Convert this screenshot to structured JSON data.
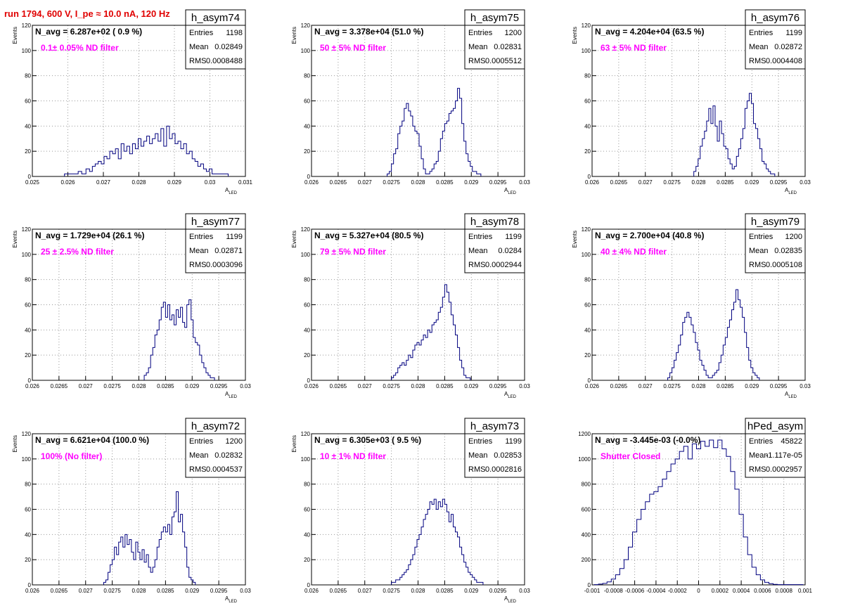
{
  "header": {
    "run_title": "run 1794,   600 V, I_pe ≈ 10.0 nA, 120 Hz"
  },
  "colors": {
    "histogram": "#00007f",
    "title": "#e00000",
    "annotation": "#ff00ff",
    "grid": "#999999"
  },
  "stats_labels": {
    "entries": "Entries",
    "mean": "Mean",
    "rms": "RMS"
  },
  "chart_data": [
    {
      "type": "histogram",
      "name": "h_asym74",
      "navg": "N_avg = 6.287e+02 ( 0.9 %)",
      "note": "0.1± 0.05% ND filter",
      "entries": "1198",
      "mean": "0.02849",
      "rms": "0.0008488",
      "xlabel": "A_LED",
      "ylabel": "Events",
      "xlim": [
        0.025,
        0.031
      ],
      "ylim": [
        0,
        120
      ],
      "xticks": [
        0.025,
        0.026,
        0.027,
        0.028,
        0.029,
        0.03,
        0.031
      ],
      "xtick_labels": [
        "0.025",
        "0.026",
        "0.027",
        "0.028",
        "0.029",
        "0.03",
        "0.031"
      ],
      "yticks": [
        0,
        20,
        40,
        60,
        80,
        100,
        120
      ],
      "x": [
        0.02597,
        0.0261,
        0.02625,
        0.02633,
        0.02645,
        0.02657,
        0.02665,
        0.02673,
        0.02681,
        0.0269,
        0.02698,
        0.02706,
        0.02714,
        0.02722,
        0.0273,
        0.02738,
        0.02746,
        0.02754,
        0.02762,
        0.0277,
        0.02778,
        0.02786,
        0.02794,
        0.02802,
        0.0281,
        0.02818,
        0.02826,
        0.02834,
        0.02842,
        0.0285,
        0.02858,
        0.02866,
        0.02874,
        0.02882,
        0.0289,
        0.02898,
        0.02906,
        0.02914,
        0.02922,
        0.0293,
        0.02938,
        0.02946,
        0.02954,
        0.02962,
        0.0297,
        0.02978,
        0.02986,
        0.02994,
        0.03002,
        0.0301,
        0.0302,
        0.03045
      ],
      "y": [
        2,
        2,
        2,
        4,
        2,
        6,
        4,
        8,
        10,
        12,
        10,
        16,
        14,
        20,
        18,
        22,
        14,
        26,
        20,
        24,
        18,
        26,
        22,
        30,
        24,
        28,
        32,
        26,
        30,
        34,
        28,
        38,
        24,
        40,
        30,
        34,
        26,
        28,
        22,
        26,
        18,
        20,
        14,
        12,
        8,
        10,
        6,
        4,
        6,
        2,
        2,
        2
      ]
    },
    {
      "type": "histogram",
      "name": "h_asym75",
      "navg": "N_avg = 3.378e+04 (51.0 %)",
      "note": "50 ± 5% ND filter",
      "entries": "1200",
      "mean": "0.02831",
      "rms": "0.0005512",
      "xlabel": "A_LED",
      "ylabel": "Events",
      "xlim": [
        0.026,
        0.03
      ],
      "ylim": [
        0,
        120
      ],
      "xticks": [
        0.026,
        0.0265,
        0.027,
        0.0275,
        0.028,
        0.0285,
        0.029,
        0.0295,
        0.03
      ],
      "xtick_labels": [
        "0.026",
        "0.0265",
        "0.027",
        "0.0275",
        "0.028",
        "0.0285",
        "0.029",
        "0.0295",
        "0.03"
      ],
      "yticks": [
        0,
        20,
        40,
        60,
        80,
        100,
        120
      ],
      "x": [
        0.02744,
        0.02748,
        0.02752,
        0.02756,
        0.0276,
        0.02764,
        0.02768,
        0.02772,
        0.02776,
        0.0278,
        0.02784,
        0.02788,
        0.02792,
        0.02796,
        0.028,
        0.02804,
        0.02808,
        0.02812,
        0.02816,
        0.0282,
        0.02824,
        0.02828,
        0.02832,
        0.02836,
        0.0284,
        0.02844,
        0.02848,
        0.02852,
        0.02856,
        0.0286,
        0.02864,
        0.02868,
        0.02872,
        0.02876,
        0.0288,
        0.02884,
        0.02888,
        0.02892,
        0.02896,
        0.029,
        0.02904,
        0.02908,
        0.02912,
        0.02916
      ],
      "y": [
        2,
        4,
        10,
        18,
        22,
        34,
        40,
        44,
        54,
        58,
        52,
        48,
        40,
        36,
        34,
        24,
        14,
        6,
        2,
        2,
        4,
        6,
        10,
        12,
        20,
        30,
        36,
        42,
        44,
        50,
        52,
        54,
        60,
        70,
        62,
        42,
        28,
        18,
        12,
        8,
        4,
        4,
        2,
        2
      ]
    },
    {
      "type": "histogram",
      "name": "h_asym76",
      "navg": "N_avg = 4.204e+04 (63.5 %)",
      "note": "63 ± 5% ND filter",
      "entries": "1199",
      "mean": "0.02872",
      "rms": "0.0004408",
      "xlabel": "A_LED",
      "ylabel": "Events",
      "xlim": [
        0.026,
        0.03
      ],
      "ylim": [
        0,
        120
      ],
      "xticks": [
        0.026,
        0.0265,
        0.027,
        0.0275,
        0.028,
        0.0285,
        0.029,
        0.0295,
        0.03
      ],
      "xtick_labels": [
        "0.026",
        "0.0265",
        "0.027",
        "0.0275",
        "0.028",
        "0.0285",
        "0.029",
        "0.0295",
        "0.03"
      ],
      "yticks": [
        0,
        20,
        40,
        60,
        80,
        100,
        120
      ],
      "x": [
        0.02793,
        0.02797,
        0.02801,
        0.02805,
        0.02809,
        0.02813,
        0.02817,
        0.02821,
        0.02825,
        0.02829,
        0.02833,
        0.02837,
        0.02841,
        0.02845,
        0.02849,
        0.02853,
        0.02857,
        0.02861,
        0.02865,
        0.02869,
        0.02873,
        0.02877,
        0.02881,
        0.02885,
        0.02889,
        0.02893,
        0.02897,
        0.02901,
        0.02905,
        0.02909,
        0.02913,
        0.02917,
        0.02921,
        0.02925,
        0.02929,
        0.02933,
        0.02937,
        0.02941
      ],
      "y": [
        4,
        8,
        14,
        24,
        30,
        36,
        44,
        54,
        42,
        56,
        40,
        28,
        44,
        34,
        24,
        22,
        14,
        10,
        6,
        8,
        16,
        22,
        30,
        38,
        54,
        60,
        66,
        58,
        42,
        38,
        30,
        22,
        12,
        10,
        6,
        4,
        2,
        2
      ]
    },
    {
      "type": "histogram",
      "name": "h_asym77",
      "navg": "N_avg = 1.729e+04 (26.1 %)",
      "note": "25 ± 2.5% ND filter",
      "entries": "1199",
      "mean": "0.02871",
      "rms": "0.0003096",
      "xlabel": "A_LED",
      "ylabel": "Events",
      "xlim": [
        0.026,
        0.03
      ],
      "ylim": [
        0,
        120
      ],
      "xticks": [
        0.026,
        0.0265,
        0.027,
        0.0275,
        0.028,
        0.0285,
        0.029,
        0.0295,
        0.03
      ],
      "xtick_labels": [
        "0.026",
        "0.0265",
        "0.027",
        "0.0275",
        "0.028",
        "0.0285",
        "0.029",
        "0.0295",
        "0.03"
      ],
      "yticks": [
        0,
        20,
        40,
        60,
        80,
        100,
        120
      ],
      "x": [
        0.02812,
        0.02816,
        0.0282,
        0.02824,
        0.02828,
        0.02832,
        0.02836,
        0.0284,
        0.02844,
        0.02848,
        0.02852,
        0.02856,
        0.0286,
        0.02864,
        0.02868,
        0.02872,
        0.02876,
        0.0288,
        0.02884,
        0.02888,
        0.02892,
        0.02896,
        0.029,
        0.02904,
        0.02908,
        0.02912,
        0.02916,
        0.0292,
        0.02924,
        0.02928,
        0.02932,
        0.02936,
        0.0294
      ],
      "y": [
        4,
        6,
        10,
        20,
        26,
        36,
        40,
        48,
        58,
        62,
        50,
        60,
        48,
        52,
        44,
        56,
        50,
        58,
        46,
        42,
        60,
        64,
        48,
        34,
        30,
        28,
        20,
        14,
        10,
        6,
        4,
        2,
        2
      ]
    },
    {
      "type": "histogram",
      "name": "h_asym78",
      "navg": "N_avg = 5.327e+04 (80.5 %)",
      "note": "79 ± 5% ND filter",
      "entries": "1199",
      "mean": "0.0284",
      "rms": "0.0002944",
      "xlabel": "A_LED",
      "ylabel": "Events",
      "xlim": [
        0.026,
        0.03
      ],
      "ylim": [
        0,
        120
      ],
      "xticks": [
        0.026,
        0.0265,
        0.027,
        0.0275,
        0.028,
        0.0285,
        0.029,
        0.0295,
        0.03
      ],
      "xtick_labels": [
        "0.026",
        "0.0265",
        "0.027",
        "0.0275",
        "0.028",
        "0.0285",
        "0.029",
        "0.0295",
        "0.03"
      ],
      "yticks": [
        0,
        20,
        40,
        60,
        80,
        100,
        120
      ],
      "x": [
        0.02752,
        0.02756,
        0.0276,
        0.02764,
        0.02768,
        0.02772,
        0.02776,
        0.0278,
        0.02784,
        0.02788,
        0.02792,
        0.02796,
        0.028,
        0.02804,
        0.02808,
        0.02812,
        0.02816,
        0.0282,
        0.02824,
        0.02828,
        0.02832,
        0.02836,
        0.0284,
        0.02844,
        0.02848,
        0.02852,
        0.02856,
        0.0286,
        0.02864,
        0.02868,
        0.02872,
        0.02876,
        0.0288,
        0.02884,
        0.02888,
        0.02892,
        0.02896
      ],
      "y": [
        2,
        4,
        6,
        10,
        12,
        14,
        12,
        16,
        20,
        18,
        24,
        28,
        30,
        28,
        32,
        36,
        34,
        40,
        38,
        44,
        46,
        48,
        54,
        58,
        66,
        76,
        70,
        62,
        52,
        44,
        36,
        26,
        16,
        10,
        4,
        2,
        2
      ]
    },
    {
      "type": "histogram",
      "name": "h_asym79",
      "navg": "N_avg = 2.700e+04 (40.8 %)",
      "note": "40 ± 4% ND filter",
      "entries": "1200",
      "mean": "0.02835",
      "rms": "0.0005108",
      "xlabel": "A_LED",
      "ylabel": "Events",
      "xlim": [
        0.026,
        0.03
      ],
      "ylim": [
        0,
        120
      ],
      "xticks": [
        0.026,
        0.0265,
        0.027,
        0.0275,
        0.028,
        0.0285,
        0.029,
        0.0295,
        0.03
      ],
      "xtick_labels": [
        "0.026",
        "0.0265",
        "0.027",
        "0.0275",
        "0.028",
        "0.0285",
        "0.029",
        "0.0295",
        "0.03"
      ],
      "yticks": [
        0,
        20,
        40,
        60,
        80,
        100,
        120
      ],
      "x": [
        0.02744,
        0.02748,
        0.02752,
        0.02756,
        0.0276,
        0.02764,
        0.02768,
        0.02772,
        0.02776,
        0.0278,
        0.02784,
        0.02788,
        0.02792,
        0.02796,
        0.028,
        0.02804,
        0.02808,
        0.02812,
        0.02816,
        0.0282,
        0.02824,
        0.02828,
        0.02832,
        0.02836,
        0.0284,
        0.02844,
        0.02848,
        0.02852,
        0.02856,
        0.0286,
        0.02864,
        0.02868,
        0.02872,
        0.02876,
        0.0288,
        0.02884,
        0.02888,
        0.02892,
        0.02896,
        0.029,
        0.02904,
        0.02908,
        0.02912
      ],
      "y": [
        2,
        6,
        10,
        16,
        22,
        28,
        36,
        46,
        50,
        54,
        50,
        44,
        38,
        30,
        24,
        16,
        12,
        8,
        4,
        2,
        2,
        4,
        6,
        8,
        14,
        20,
        28,
        34,
        42,
        48,
        56,
        62,
        72,
        64,
        58,
        50,
        38,
        26,
        16,
        10,
        6,
        4,
        2
      ]
    },
    {
      "type": "histogram",
      "name": "h_asym72",
      "navg": "N_avg = 6.621e+04 (100.0 %)",
      "note": "100% (No filter)",
      "entries": "1200",
      "mean": "0.02832",
      "rms": "0.0004537",
      "xlabel": "A_LED",
      "ylabel": "Events",
      "xlim": [
        0.026,
        0.03
      ],
      "ylim": [
        0,
        120
      ],
      "xticks": [
        0.026,
        0.0265,
        0.027,
        0.0275,
        0.028,
        0.0285,
        0.029,
        0.0295,
        0.03
      ],
      "xtick_labels": [
        "0.026",
        "0.0265",
        "0.027",
        "0.0275",
        "0.028",
        "0.0285",
        "0.029",
        "0.0295",
        "0.03"
      ],
      "yticks": [
        0,
        20,
        40,
        60,
        80,
        100,
        120
      ],
      "x": [
        0.02736,
        0.0274,
        0.02744,
        0.02748,
        0.02752,
        0.02756,
        0.0276,
        0.02764,
        0.02768,
        0.02772,
        0.02776,
        0.0278,
        0.02784,
        0.02788,
        0.02792,
        0.02796,
        0.028,
        0.02804,
        0.02808,
        0.02812,
        0.02816,
        0.0282,
        0.02824,
        0.02828,
        0.02832,
        0.02836,
        0.0284,
        0.02844,
        0.02848,
        0.02852,
        0.02856,
        0.0286,
        0.02864,
        0.02868,
        0.02872,
        0.02876,
        0.0288,
        0.02884,
        0.02888,
        0.02892,
        0.02896,
        0.029,
        0.02904
      ],
      "y": [
        2,
        4,
        10,
        16,
        20,
        30,
        24,
        34,
        38,
        30,
        40,
        32,
        36,
        26,
        20,
        34,
        26,
        20,
        28,
        18,
        24,
        14,
        10,
        14,
        20,
        30,
        36,
        42,
        46,
        42,
        48,
        40,
        54,
        58,
        74,
        50,
        56,
        42,
        30,
        14,
        6,
        4,
        2
      ]
    },
    {
      "type": "histogram",
      "name": "h_asym73",
      "navg": "N_avg = 6.305e+03 ( 9.5 %)",
      "note": "10 ± 1% ND filter",
      "entries": "1199",
      "mean": "0.02853",
      "rms": "0.0002816",
      "xlabel": "A_LED",
      "ylabel": "Events",
      "xlim": [
        0.026,
        0.03
      ],
      "ylim": [
        0,
        120
      ],
      "xticks": [
        0.026,
        0.0265,
        0.027,
        0.0275,
        0.028,
        0.0285,
        0.029,
        0.0295,
        0.03
      ],
      "xtick_labels": [
        "0.026",
        "0.0265",
        "0.027",
        "0.0275",
        "0.028",
        "0.0285",
        "0.029",
        "0.0295",
        "0.03"
      ],
      "yticks": [
        0,
        20,
        40,
        60,
        80,
        100,
        120
      ],
      "x": [
        0.02752,
        0.02756,
        0.0276,
        0.02764,
        0.02768,
        0.02772,
        0.02776,
        0.0278,
        0.02784,
        0.02788,
        0.02792,
        0.02796,
        0.028,
        0.02804,
        0.02808,
        0.02812,
        0.02816,
        0.0282,
        0.02824,
        0.02828,
        0.02832,
        0.02836,
        0.0284,
        0.02844,
        0.02848,
        0.02852,
        0.02856,
        0.0286,
        0.02864,
        0.02868,
        0.02872,
        0.02876,
        0.0288,
        0.02884,
        0.02888,
        0.02892,
        0.02896,
        0.029,
        0.02904,
        0.02908,
        0.02912,
        0.02916,
        0.0292
      ],
      "y": [
        2,
        2,
        4,
        4,
        6,
        8,
        10,
        12,
        16,
        20,
        24,
        30,
        36,
        40,
        46,
        52,
        56,
        60,
        66,
        64,
        68,
        60,
        66,
        62,
        68,
        64,
        58,
        50,
        56,
        46,
        42,
        38,
        30,
        24,
        18,
        14,
        10,
        8,
        6,
        4,
        2,
        2,
        2
      ]
    },
    {
      "type": "histogram",
      "name": "hPed_asym",
      "navg": "N_avg = -3.445e-03 (-0.0%)",
      "note": "Shutter Closed",
      "entries": "45822",
      "mean": "-1.117e-05",
      "rms": "0.0002957",
      "xlabel": "",
      "ylabel": "",
      "xlim": [
        -0.001,
        0.001
      ],
      "ylim": [
        0,
        1200
      ],
      "xticks": [
        -0.001,
        -0.0008,
        -0.0006,
        -0.0004,
        -0.0002,
        0,
        0.0002,
        0.0004,
        0.0006,
        0.0008,
        0.001
      ],
      "xtick_labels": [
        "-0.001",
        "-0.0008",
        "-0.0006",
        "-0.0004",
        "-0.0002",
        "0",
        "0.0002",
        "0.0004",
        "0.0006",
        "0.0008",
        "0.001"
      ],
      "yticks": [
        0,
        200,
        400,
        600,
        800,
        1000,
        1200
      ],
      "x": [
        -0.00096,
        -0.00092,
        -0.00088,
        -0.00084,
        -0.0008,
        -0.00076,
        -0.00072,
        -0.00068,
        -0.00064,
        -0.0006,
        -0.00056,
        -0.00052,
        -0.00048,
        -0.00044,
        -0.0004,
        -0.00036,
        -0.00032,
        -0.00028,
        -0.00024,
        -0.0002,
        -0.00016,
        -0.00012,
        -8e-05,
        -4e-05,
        0,
        4e-05,
        8e-05,
        0.00012,
        0.00016,
        0.0002,
        0.00024,
        0.00028,
        0.00032,
        0.00036,
        0.0004,
        0.00044,
        0.00048,
        0.00052,
        0.00056,
        0.0006,
        0.00064,
        0.00068,
        0.00072,
        0.00076,
        0.0008,
        0.00084,
        0.00088,
        0.00092,
        0.00096
      ],
      "y": [
        2,
        6,
        12,
        24,
        46,
        80,
        130,
        200,
        300,
        420,
        520,
        600,
        660,
        720,
        740,
        780,
        840,
        900,
        960,
        1000,
        1060,
        1100,
        1000,
        1120,
        1080,
        1140,
        1100,
        1150,
        1090,
        1150,
        1080,
        1020,
        900,
        760,
        560,
        380,
        240,
        140,
        80,
        40,
        20,
        10,
        4,
        2,
        2,
        2,
        2,
        2,
        2
      ]
    }
  ]
}
